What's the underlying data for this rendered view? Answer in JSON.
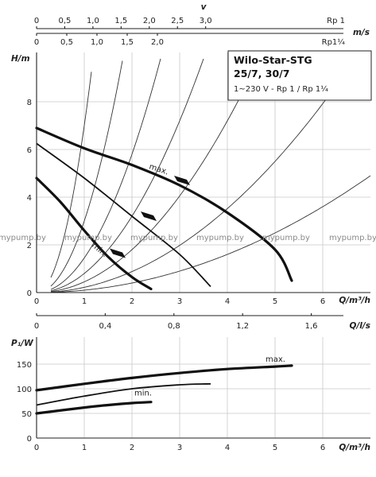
{
  "chart_data": [
    {
      "type": "line",
      "title": "Wilo-Star-STG",
      "subtitle": "25/7, 30/7",
      "spec": "1~230 V - Rp 1 / Rp 1¼",
      "xlabel": "Q/m³/h",
      "ylabel": "H/m",
      "xlim": [
        0,
        7
      ],
      "ylim": [
        0,
        10
      ],
      "x_ticks": [
        0,
        1,
        2,
        3,
        4,
        5,
        6
      ],
      "y_ticks": [
        0,
        2,
        4,
        6,
        8
      ],
      "grid": true,
      "series": [
        {
          "name": "max.",
          "x": [
            0,
            1,
            2,
            3,
            4,
            5,
            5.35
          ],
          "y": [
            6.9,
            6.05,
            5.35,
            4.5,
            3.35,
            1.8,
            0.5
          ]
        },
        {
          "name": "",
          "x": [
            0,
            1,
            2,
            3,
            3.65
          ],
          "y": [
            6.25,
            4.8,
            3.2,
            1.6,
            0.25
          ]
        },
        {
          "name": "min.",
          "x": [
            0,
            0.5,
            1,
            1.5,
            2,
            2.4
          ],
          "y": [
            4.8,
            3.8,
            2.6,
            1.5,
            0.65,
            0.15
          ]
        }
      ],
      "series_labels": {
        "max": "max.",
        "min": "min."
      },
      "velocity_axes": [
        {
          "label": "v",
          "unit": "m/s",
          "pipe": "Rp 1",
          "ticks": [
            0,
            0.5,
            1.0,
            1.5,
            2.0,
            2.5,
            3.0
          ],
          "tick_labels": [
            "0",
            "0,5",
            "1,0",
            "1,5",
            "2,0",
            "2,5",
            "3,0"
          ]
        },
        {
          "pipe": "Rp1¼",
          "ticks": [
            0,
            0.5,
            1.0,
            1.5,
            2.0
          ],
          "tick_labels": [
            "0",
            "0,5",
            "1,0",
            "1,5",
            "2,0"
          ]
        }
      ]
    },
    {
      "type": "line",
      "xlabel": "Q/m³/h",
      "ylabel": "P₁/W",
      "xlim": [
        0,
        7
      ],
      "ylim": [
        0,
        175
      ],
      "x_ticks": [
        0,
        1,
        2,
        3,
        4,
        5,
        6
      ],
      "y_ticks": [
        0,
        50,
        100,
        150
      ],
      "grid": true,
      "series": [
        {
          "name": "max.",
          "x": [
            0,
            1,
            2,
            3,
            4,
            5,
            5.35
          ],
          "y": [
            97,
            110,
            122,
            132,
            140,
            145,
            147
          ]
        },
        {
          "name": "",
          "x": [
            0,
            1,
            2,
            3,
            3.65
          ],
          "y": [
            67,
            85,
            100,
            108,
            110
          ]
        },
        {
          "name": "min.",
          "x": [
            0,
            1,
            1.5,
            2,
            2.4
          ],
          "y": [
            50,
            62,
            67,
            71,
            73
          ]
        }
      ],
      "series_labels": {
        "max": "max.",
        "min": "min."
      },
      "flow_axis": {
        "unit": "Q/l/s",
        "ticks": [
          0,
          0.4,
          0.8,
          1.2,
          1.6
        ],
        "tick_labels": [
          "0",
          "0,4",
          "0,8",
          "1,2",
          "1,6"
        ]
      }
    }
  ],
  "watermarks": [
    "mypump.by",
    "mypump.by",
    "mypump.by",
    "mypump.by",
    "mypump.by",
    "mypump.by"
  ]
}
